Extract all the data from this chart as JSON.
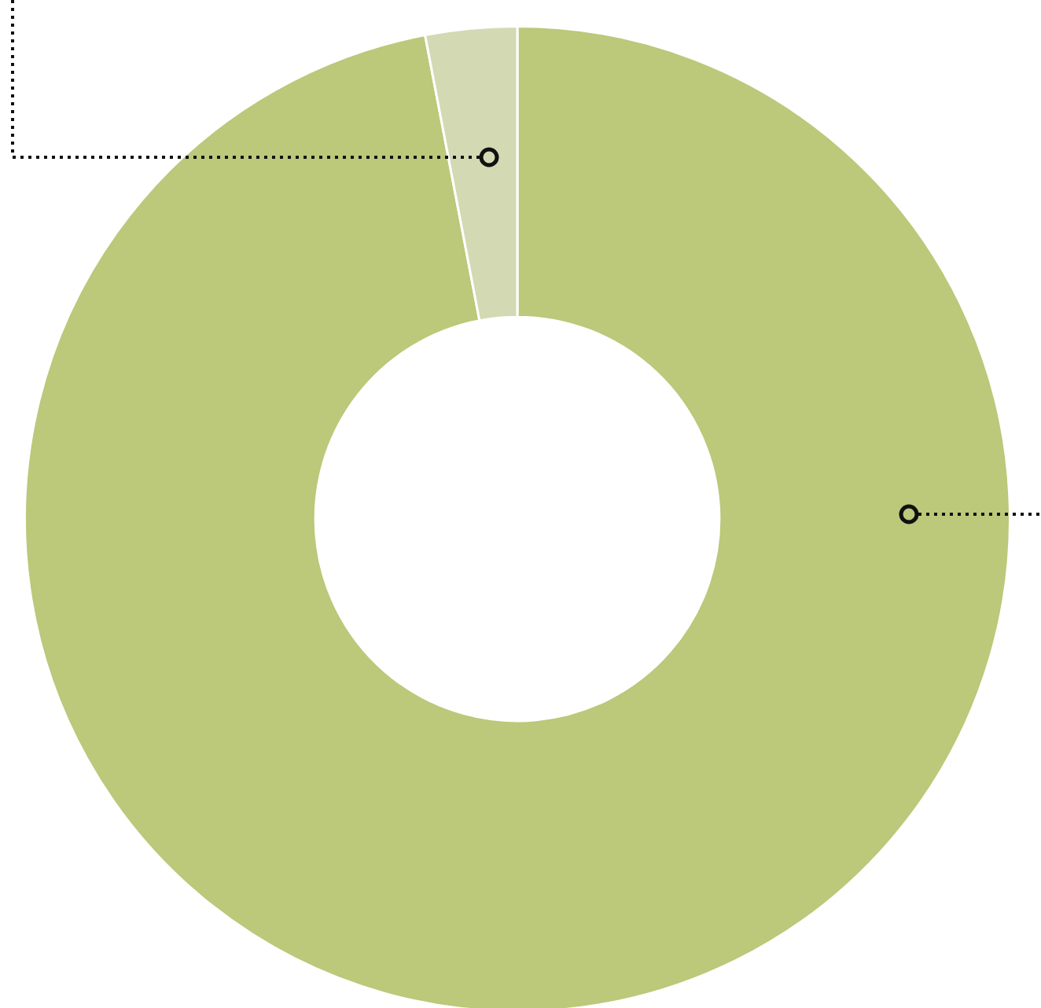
{
  "chart_data": {
    "type": "donut",
    "categories": [
      null,
      null
    ],
    "values": [
      97,
      3
    ],
    "colors": [
      "#bcc87a",
      "#d3d9b2"
    ]
  }
}
